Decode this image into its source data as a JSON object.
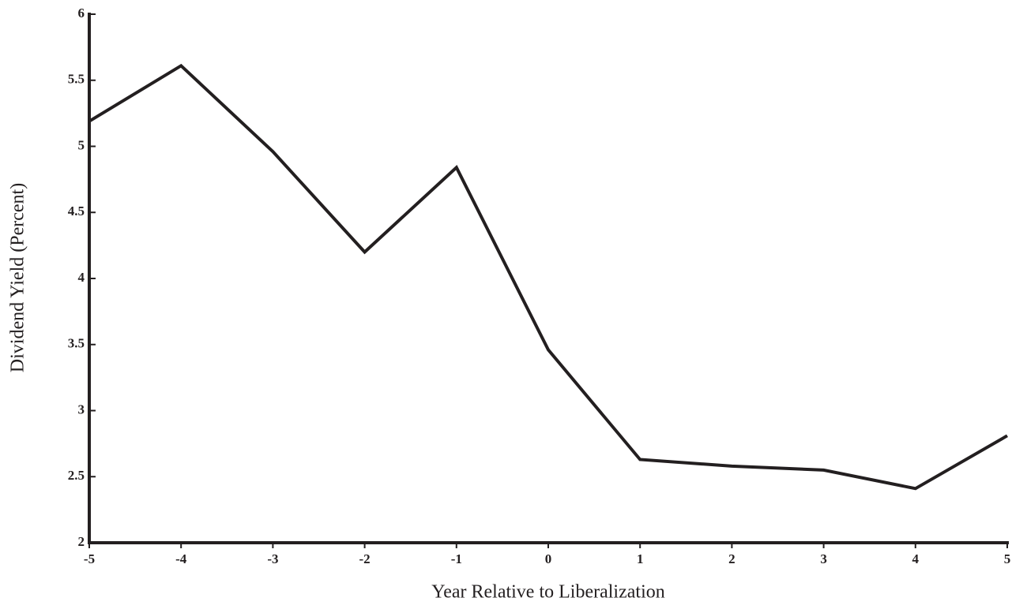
{
  "chart_data": {
    "type": "line",
    "x_label": "Year Relative to Liberalization",
    "y_label": "Dividend Yield (Percent)",
    "x": [
      -5,
      -4,
      -3,
      -2,
      -1,
      0,
      1,
      2,
      3,
      4,
      5
    ],
    "series": [
      {
        "color": "#231f20",
        "values": [
          5.19,
          5.61,
          4.96,
          4.2,
          4.84,
          3.46,
          2.63,
          2.58,
          2.55,
          2.41,
          2.81
        ]
      }
    ],
    "xlim": [
      -5,
      5
    ],
    "xticks": [
      -5,
      -4,
      -3,
      -2,
      -1,
      0,
      1,
      2,
      3,
      4,
      5
    ],
    "ylim": [
      2,
      6
    ],
    "yticks": [
      2,
      2.5,
      3,
      3.5,
      4,
      4.5,
      5,
      5.5,
      6
    ]
  }
}
